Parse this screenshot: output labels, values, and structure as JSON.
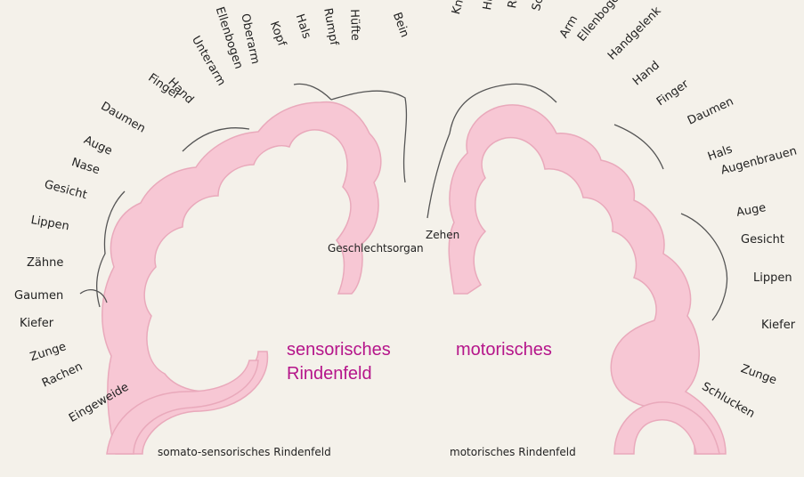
{
  "colors": {
    "cortex_fill": "#f7c7d4",
    "cortex_stroke": "#e9a9bb",
    "accent_text": "#b5158a",
    "paper": "#f4f1ea"
  },
  "sensory_labels": [
    "Bein",
    "Hüfte",
    "Rumpf",
    "Hals",
    "Kopf",
    "Oberarm",
    "Ellenbogen",
    "Unterarm",
    "Hand",
    "Finger",
    "Daumen",
    "Auge",
    "Nase",
    "Gesicht",
    "Lippen",
    "Zähne",
    "Gaumen",
    "Kiefer",
    "Zunge",
    "Rachen",
    "Eingeweide"
  ],
  "motor_labels": [
    "Knie",
    "Hüfte",
    "Rumpf",
    "Schulter",
    "Arm",
    "Ellenbogen",
    "Handgelenk",
    "Hand",
    "Finger",
    "Daumen",
    "Hals",
    "Augenbrauen",
    "Auge",
    "Gesicht",
    "Lippen",
    "Kiefer",
    "Zunge",
    "Schlucken"
  ],
  "center_labels": {
    "genital": "Geschlechtsorgan",
    "toes": "Zehen"
  },
  "big_labels": {
    "sensory": "sensorisches\nRindenfeld",
    "motor": "motorisches"
  },
  "bottom_labels": {
    "sensory": "somato-sensorisches Rindenfeld",
    "motor": "motorisches Rindenfeld"
  }
}
